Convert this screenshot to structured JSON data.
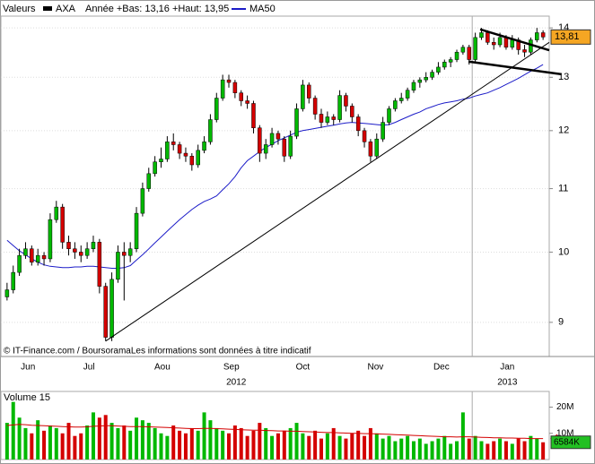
{
  "chart_data": [
    {
      "type": "candlestick",
      "label": "Valeurs",
      "series_name": "AXA",
      "info": "Année +Bas: 13,16 +Haut: 13,95",
      "source": "© IT-Finance.com / BoursoramaLes informations sont données à titre indicatif",
      "categories": [
        null,
        null,
        null,
        null,
        null,
        null,
        null,
        null,
        null,
        null,
        null,
        null,
        null,
        null,
        null,
        null,
        null,
        null,
        null,
        null,
        null,
        null,
        null,
        null,
        null,
        null,
        null,
        null,
        null,
        null,
        null,
        null,
        null,
        null,
        null,
        null,
        null,
        null,
        null,
        null,
        null,
        null,
        null,
        null,
        null,
        null,
        null,
        null,
        null,
        null,
        null,
        null,
        null,
        null,
        null,
        null,
        null,
        null,
        null,
        null,
        null,
        null,
        null,
        null,
        null,
        null,
        null,
        null,
        null,
        null,
        null,
        null,
        null,
        null,
        null,
        null,
        null,
        null,
        null,
        null,
        null,
        null,
        null,
        null,
        null,
        null,
        null,
        null
      ],
      "open": [
        9.35,
        9.45,
        9.7,
        9.95,
        10.05,
        9.85,
        9.95,
        9.9,
        10.5,
        10.7,
        10.15,
        10.05,
        10.0,
        9.95,
        10.05,
        10.15,
        9.5,
        8.8,
        9.6,
        10.0,
        9.95,
        10.05,
        10.6,
        11.0,
        11.25,
        11.45,
        11.5,
        11.8,
        11.75,
        11.6,
        11.55,
        11.4,
        11.65,
        11.8,
        12.2,
        12.6,
        12.95,
        12.9,
        12.7,
        12.55,
        12.5,
        12.05,
        11.6,
        11.75,
        11.95,
        11.85,
        11.55,
        11.9,
        12.4,
        12.85,
        12.6,
        12.3,
        12.15,
        12.25,
        12.2,
        12.65,
        12.45,
        12.25,
        12.0,
        11.8,
        11.55,
        11.85,
        12.15,
        12.4,
        12.55,
        12.6,
        12.75,
        12.9,
        12.95,
        13.0,
        13.1,
        13.2,
        13.3,
        13.35,
        13.5,
        13.6,
        13.35,
        13.8,
        13.9,
        13.7,
        13.65,
        13.8,
        13.6,
        13.75,
        13.55,
        13.5,
        13.75,
        13.9
      ],
      "high": [
        9.55,
        9.8,
        10.05,
        10.15,
        10.1,
        10.05,
        10.0,
        10.6,
        10.8,
        10.75,
        10.25,
        10.15,
        10.1,
        10.15,
        10.25,
        10.2,
        9.55,
        9.7,
        10.1,
        10.15,
        10.15,
        10.7,
        11.1,
        11.35,
        11.55,
        11.7,
        11.9,
        11.95,
        11.8,
        11.7,
        11.6,
        11.75,
        11.9,
        12.3,
        12.7,
        13.05,
        13.05,
        12.95,
        12.75,
        12.65,
        12.55,
        12.1,
        11.85,
        12.05,
        12.0,
        11.9,
        12.0,
        12.5,
        12.95,
        12.9,
        12.65,
        12.4,
        12.35,
        12.3,
        12.75,
        12.7,
        12.5,
        12.3,
        12.05,
        11.85,
        11.95,
        12.25,
        12.45,
        12.6,
        12.7,
        12.8,
        12.95,
        13.0,
        13.1,
        13.15,
        13.3,
        13.35,
        13.4,
        13.55,
        13.65,
        13.65,
        13.9,
        14.0,
        13.95,
        13.8,
        13.9,
        13.85,
        13.85,
        13.8,
        13.65,
        13.8,
        14.0,
        13.95
      ],
      "low": [
        9.3,
        9.4,
        9.65,
        9.9,
        9.8,
        9.8,
        9.8,
        9.85,
        10.45,
        10.05,
        9.95,
        9.9,
        9.85,
        9.9,
        10.0,
        9.4,
        8.75,
        8.75,
        9.55,
        9.3,
        9.85,
        10.0,
        10.55,
        10.95,
        11.2,
        11.35,
        11.45,
        11.65,
        11.5,
        11.45,
        11.3,
        11.35,
        11.6,
        11.75,
        12.15,
        12.55,
        12.8,
        12.6,
        12.45,
        12.4,
        11.95,
        11.45,
        11.5,
        11.7,
        11.75,
        11.45,
        11.5,
        11.85,
        12.35,
        12.5,
        12.2,
        12.05,
        12.1,
        12.1,
        12.15,
        12.35,
        12.15,
        11.9,
        11.7,
        11.45,
        11.5,
        11.8,
        12.1,
        12.35,
        12.5,
        12.55,
        12.7,
        12.8,
        12.9,
        12.95,
        13.05,
        13.15,
        13.2,
        13.3,
        13.45,
        13.25,
        13.3,
        13.75,
        13.65,
        13.55,
        13.6,
        13.55,
        13.55,
        13.45,
        13.4,
        13.45,
        13.7,
        13.75
      ],
      "close": [
        9.45,
        9.7,
        9.95,
        10.05,
        9.85,
        9.95,
        9.9,
        10.5,
        10.7,
        10.15,
        10.05,
        10.0,
        9.95,
        10.05,
        10.15,
        9.5,
        8.8,
        9.6,
        10.0,
        9.95,
        10.05,
        10.6,
        11.0,
        11.25,
        11.45,
        11.5,
        11.8,
        11.75,
        11.6,
        11.55,
        11.4,
        11.65,
        11.8,
        12.2,
        12.6,
        12.95,
        12.9,
        12.7,
        12.55,
        12.5,
        12.05,
        11.6,
        11.75,
        11.95,
        11.85,
        11.55,
        11.9,
        12.4,
        12.85,
        12.6,
        12.3,
        12.15,
        12.25,
        12.2,
        12.65,
        12.45,
        12.25,
        12.0,
        11.8,
        11.55,
        11.85,
        12.15,
        12.4,
        12.55,
        12.6,
        12.75,
        12.9,
        12.95,
        13.0,
        13.1,
        13.2,
        13.3,
        13.35,
        13.5,
        13.6,
        13.35,
        13.8,
        13.9,
        13.7,
        13.65,
        13.8,
        13.6,
        13.75,
        13.55,
        13.5,
        13.75,
        13.9,
        13.81
      ],
      "last_label": "13,81",
      "up_color": "#00b800",
      "down_color": "#d40000",
      "label_color": "#f5a623",
      "series": [
        {
          "name": "MA50",
          "color": "#1c1cc8",
          "values": [
            10.18,
            10.1,
            10.02,
            9.96,
            9.9,
            9.85,
            9.81,
            9.79,
            9.78,
            9.77,
            9.77,
            9.78,
            9.78,
            9.79,
            9.79,
            9.78,
            9.77,
            9.76,
            9.76,
            9.77,
            9.8,
            9.88,
            9.96,
            10.05,
            10.14,
            10.23,
            10.32,
            10.41,
            10.5,
            10.58,
            10.66,
            10.73,
            10.79,
            10.83,
            10.88,
            10.98,
            11.08,
            11.2,
            11.35,
            11.47,
            11.55,
            11.63,
            11.7,
            11.76,
            11.82,
            11.87,
            11.92,
            11.97,
            12.0,
            12.02,
            12.04,
            12.06,
            12.08,
            12.1,
            12.12,
            12.14,
            12.15,
            12.14,
            12.13,
            12.12,
            12.11,
            12.1,
            12.11,
            12.15,
            12.2,
            12.25,
            12.3,
            12.34,
            12.4,
            12.44,
            12.48,
            12.51,
            12.53,
            12.55,
            12.58,
            12.6,
            12.64,
            12.67,
            12.7,
            12.75,
            12.8,
            12.86,
            12.92,
            12.98,
            13.05,
            13.12,
            13.18,
            13.25
          ]
        }
      ],
      "trendlines": [
        {
          "x": [
            16,
            88
          ],
          "y": [
            8.75,
            13.7
          ]
        },
        {
          "x": [
            76.8,
            88
          ],
          "y": [
            13.97,
            13.54
          ]
        },
        {
          "x": [
            74.9,
            90
          ],
          "y": [
            13.31,
            13.06
          ]
        }
      ],
      "xlim": [
        -1,
        88
      ],
      "xticks": [
        {
          "value": 3.4,
          "label": "Jun"
        },
        {
          "value": 13.3,
          "label": "Jul"
        },
        {
          "value": 25.2,
          "label": "Aou"
        },
        {
          "value": 36.4,
          "label": "Sep"
        },
        {
          "value": 48,
          "label": "Oct"
        },
        {
          "value": 59.8,
          "label": "Nov"
        },
        {
          "value": 70.5,
          "label": "Dec"
        },
        {
          "value": 81.2,
          "label": "Jan"
        }
      ],
      "year_ticks": [
        {
          "value": 37.2,
          "label": "2012"
        },
        {
          "value": 81.2,
          "label": "2013"
        }
      ],
      "year_line": 75.5,
      "ylim": [
        8.55,
        14.25
      ],
      "log": true,
      "yticks": [
        9,
        10,
        11,
        12,
        13,
        14
      ],
      "grid": true
    },
    {
      "type": "bar",
      "title": "Volume 15",
      "values": [
        14,
        22,
        16,
        12,
        10,
        15,
        11,
        13,
        12,
        10,
        14,
        9,
        10,
        13,
        18,
        16,
        17,
        14,
        12,
        13,
        11,
        16,
        15,
        14,
        12,
        10,
        9,
        13,
        11,
        10,
        12,
        11,
        18,
        15,
        12,
        11,
        10,
        13,
        12,
        9,
        11,
        14,
        12,
        9,
        10,
        11,
        12,
        14,
        10,
        9,
        11,
        8,
        10,
        12,
        9,
        8,
        10,
        11,
        9,
        12,
        10,
        8,
        9,
        7,
        8,
        9,
        7,
        8,
        6,
        7,
        8,
        9,
        6,
        7,
        18,
        8,
        9,
        7,
        6,
        7,
        8,
        7,
        6,
        8,
        7,
        9,
        8,
        6.584
      ],
      "last_label": "6584K",
      "ma": [
        13,
        13.2,
        13.4,
        13.3,
        13.1,
        13,
        12.9,
        12.8,
        12.7,
        12.6,
        12.5,
        12.4,
        12.4,
        12.5,
        12.7,
        12.8,
        12.9,
        12.9,
        12.8,
        12.7,
        12.6,
        12.6,
        12.6,
        12.5,
        12.4,
        12.3,
        12.2,
        12.1,
        12,
        11.9,
        11.8,
        11.8,
        11.9,
        11.9,
        11.8,
        11.7,
        11.6,
        11.5,
        11.4,
        11.3,
        11.2,
        11.2,
        11.1,
        11,
        10.9,
        10.9,
        10.8,
        10.8,
        10.7,
        10.6,
        10.5,
        10.4,
        10.3,
        10.3,
        10.2,
        10.1,
        10,
        10,
        9.9,
        9.9,
        9.8,
        9.7,
        9.6,
        9.5,
        9.4,
        9.3,
        9.2,
        9.1,
        9,
        8.9,
        8.8,
        8.7,
        8.7,
        8.6,
        8.7,
        8.7,
        8.6,
        8.5,
        8.4,
        8.3,
        8.3,
        8.2,
        8.2,
        8.1,
        8.1,
        8,
        8,
        8
      ],
      "ma_color": "#d40000",
      "label_color": "#22c022",
      "ylim": [
        0,
        26
      ],
      "yticks": [
        {
          "value": 20,
          "label": "20M"
        },
        {
          "value": 10,
          "label": "10M"
        }
      ]
    }
  ]
}
